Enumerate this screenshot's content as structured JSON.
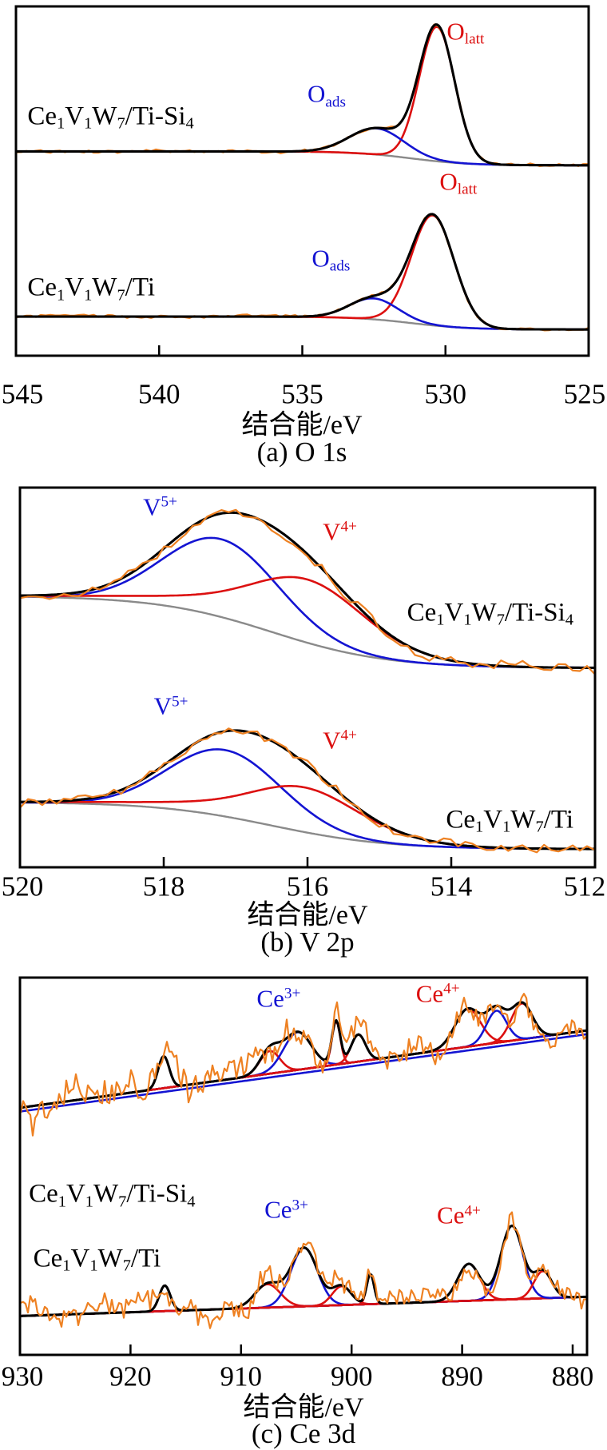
{
  "chart_data": {
    "type": "line",
    "description": "XPS spectra with fitted components: raw data (orange), total fit envelope (black), component peaks (blue/red), background (gray) and baselines",
    "colors": {
      "data": "#EE8122",
      "envelope": "#000000",
      "red": "#DC1010",
      "blue": "#1414D2",
      "gray": "#8a8a8a"
    },
    "panels": [
      {
        "id": "a",
        "caption": "(a) O 1s",
        "xlabel": "结合能/eV",
        "x_range": [
          545,
          525
        ],
        "ticks": [
          545,
          540,
          535,
          530,
          525
        ],
        "spectra": [
          {
            "sample": "Ce1V1W7/Ti-Si4",
            "sample_rich": [
              [
                "t",
                "Ce"
              ],
              [
                "sub",
                "1"
              ],
              [
                "t",
                "V"
              ],
              [
                "sub",
                "1"
              ],
              [
                "t",
                "W"
              ],
              [
                "sub",
                "7"
              ],
              [
                "t",
                "/Ti-Si"
              ],
              [
                "sub",
                "4"
              ]
            ],
            "sample_pos": {
              "x": 544.6,
              "yf": 0.315,
              "anchor": "start"
            },
            "background": {
              "type": "sigmoid",
              "left": 0.415,
              "right": 0.455,
              "center": 531.2,
              "width": 1.0,
              "color": "gray"
            },
            "peaks": [
              {
                "name": "Olatt",
                "center": 530.3,
                "sigma": 0.62,
                "amp": 0.385,
                "color": "red"
              },
              {
                "name": "Oads",
                "center": 532.4,
                "sigma": 0.95,
                "amp": 0.075,
                "color": "blue"
              }
            ],
            "noise": {
              "amp": 0.004,
              "step": 6,
              "seed": 11,
              "coarse_amp": 0.003,
              "coarse_step": 5
            },
            "data_on_top": false,
            "peak_labels": [
              {
                "rich": [
                  [
                    "t",
                    "O"
                  ],
                  [
                    "sub",
                    "latt"
                  ]
                ],
                "x": 529.3,
                "yf": 0.07,
                "color": "red"
              },
              {
                "rich": [
                  [
                    "t",
                    "O"
                  ],
                  [
                    "sub",
                    "ads"
                  ]
                ],
                "x": 534.15,
                "yf": 0.25,
                "color": "blue"
              }
            ]
          },
          {
            "sample": "Ce1V1W7/Ti",
            "sample_rich": [
              [
                "t",
                "Ce"
              ],
              [
                "sub",
                "1"
              ],
              [
                "t",
                "V"
              ],
              [
                "sub",
                "1"
              ],
              [
                "t",
                "W"
              ],
              [
                "sub",
                "7"
              ],
              [
                "t",
                "/Ti"
              ]
            ],
            "sample_pos": {
              "x": 544.6,
              "yf": 0.805,
              "anchor": "start"
            },
            "background": {
              "type": "sigmoid",
              "left": 0.888,
              "right": 0.925,
              "center": 531.2,
              "width": 1.0,
              "color": "gray"
            },
            "peaks": [
              {
                "name": "Olatt",
                "center": 530.45,
                "sigma": 0.75,
                "amp": 0.315,
                "color": "red"
              },
              {
                "name": "Oads",
                "center": 532.5,
                "sigma": 0.85,
                "amp": 0.06,
                "color": "blue"
              }
            ],
            "noise": {
              "amp": 0.004,
              "step": 6,
              "seed": 22,
              "coarse_amp": 0.003,
              "coarse_step": 5
            },
            "data_on_top": false,
            "peak_labels": [
              {
                "rich": [
                  [
                    "t",
                    "O"
                  ],
                  [
                    "sub",
                    "latt"
                  ]
                ],
                "x": 529.55,
                "yf": 0.5,
                "color": "red"
              },
              {
                "rich": [
                  [
                    "t",
                    "O"
                  ],
                  [
                    "sub",
                    "ads"
                  ]
                ],
                "x": 534.0,
                "yf": 0.72,
                "color": "blue"
              }
            ]
          }
        ]
      },
      {
        "id": "b",
        "caption": "(b) V 2p",
        "xlabel": "结合能/eV",
        "x_range": [
          520,
          512
        ],
        "ticks": [
          520,
          518,
          516,
          514,
          512
        ],
        "spectra": [
          {
            "sample": "Ce1V1W7/Ti-Si4",
            "sample_rich": [
              [
                "t",
                "Ce"
              ],
              [
                "sub",
                "1"
              ],
              [
                "t",
                "V"
              ],
              [
                "sub",
                "1"
              ],
              [
                "t",
                "W"
              ],
              [
                "sub",
                "7"
              ],
              [
                "t",
                "/Ti-Si"
              ],
              [
                "sub",
                "4"
              ]
            ],
            "sample_pos": {
              "x": 512.3,
              "yf": 0.33,
              "anchor": "end"
            },
            "background": {
              "type": "sigmoid",
              "left": 0.285,
              "right": 0.475,
              "center": 516.5,
              "width": 0.8,
              "color": "gray"
            },
            "envelope_base": {
              "type": "sigmoid",
              "left": 0.285,
              "right": 0.475,
              "center": 515.1,
              "width": 0.5
            },
            "peaks": [
              {
                "name": "V5+",
                "center": 517.2,
                "sigma": 0.8,
                "amp": 0.205,
                "color": "blue"
              },
              {
                "name": "V4+",
                "center": 516.05,
                "sigma": 0.65,
                "amp": 0.07,
                "color": "red",
                "base": {
                  "type": "sigmoid",
                  "left": 0.285,
                  "right": 0.475,
                  "center": 515.1,
                  "width": 0.5
                }
              }
            ],
            "noise": {
              "amp": 0.012,
              "step": 9,
              "seed": 33,
              "coarse_amp": 0.006,
              "coarse_step": 4
            },
            "data_on_top": true,
            "peak_labels": [
              {
                "rich": [
                  [
                    "t",
                    "V"
                  ],
                  [
                    "sup",
                    "5+"
                  ]
                ],
                "x": 518.05,
                "yf": 0.05,
                "color": "blue"
              },
              {
                "rich": [
                  [
                    "t",
                    "V"
                  ],
                  [
                    "sup",
                    "4+"
                  ]
                ],
                "x": 515.55,
                "yf": 0.115,
                "color": "red"
              }
            ]
          },
          {
            "sample": "Ce1V1W7/Ti",
            "sample_rich": [
              [
                "t",
                "Ce"
              ],
              [
                "sub",
                "1"
              ],
              [
                "t",
                "V"
              ],
              [
                "sub",
                "1"
              ],
              [
                "t",
                "W"
              ],
              [
                "sub",
                "7"
              ],
              [
                "t",
                "/Ti"
              ]
            ],
            "sample_pos": {
              "x": 512.3,
              "yf": 0.875,
              "anchor": "end"
            },
            "background": {
              "type": "sigmoid",
              "left": 0.828,
              "right": 0.952,
              "center": 516.5,
              "width": 0.8,
              "color": "gray"
            },
            "envelope_base": {
              "type": "sigmoid",
              "left": 0.828,
              "right": 0.952,
              "center": 515.1,
              "width": 0.5
            },
            "peaks": [
              {
                "name": "V5+",
                "center": 517.15,
                "sigma": 0.78,
                "amp": 0.175,
                "color": "blue"
              },
              {
                "name": "V4+",
                "center": 516.1,
                "sigma": 0.62,
                "amp": 0.055,
                "color": "red",
                "base": {
                  "type": "sigmoid",
                  "left": 0.828,
                  "right": 0.952,
                  "center": 515.1,
                  "width": 0.5
                }
              }
            ],
            "noise": {
              "amp": 0.011,
              "step": 9,
              "seed": 44,
              "coarse_amp": 0.006,
              "coarse_step": 4
            },
            "data_on_top": true,
            "peak_labels": [
              {
                "rich": [
                  [
                    "t",
                    "V"
                  ],
                  [
                    "sup",
                    "5+"
                  ]
                ],
                "x": 517.9,
                "yf": 0.575,
                "color": "blue"
              },
              {
                "rich": [
                  [
                    "t",
                    "V"
                  ],
                  [
                    "sup",
                    "4+"
                  ]
                ],
                "x": 515.55,
                "yf": 0.665,
                "color": "red"
              }
            ]
          }
        ]
      },
      {
        "id": "c",
        "caption": "(c) Ce 3d",
        "xlabel": "结合能/eV",
        "x_range": [
          930,
          878.7
        ],
        "ticks": [
          930,
          920,
          910,
          900,
          890,
          880
        ],
        "spectra": [
          {
            "sample": "Ce1V1W7/Ti-Si4",
            "sample_rich": [
              [
                "t",
                "Ce"
              ],
              [
                "sub",
                "1"
              ],
              [
                "t",
                "V"
              ],
              [
                "sub",
                "1"
              ],
              [
                "t",
                "W"
              ],
              [
                "sub",
                "7"
              ],
              [
                "t",
                "/Ti-Si"
              ],
              [
                "sub",
                "4"
              ]
            ],
            "sample_pos": {
              "x": 929.2,
              "yf": 0.575,
              "anchor": "start"
            },
            "background": {
              "type": "linear",
              "left": 0.345,
              "right": 0.14,
              "lines": [
                {
                  "color": "blue",
                  "offset": 0.01
                },
                {
                  "color": "red",
                  "offset": 0
                }
              ]
            },
            "peaks": [
              {
                "center": 917.0,
                "sigma": 0.5,
                "amp": 0.085,
                "color": "red"
              },
              {
                "center": 907.4,
                "sigma": 0.9,
                "amp": 0.06,
                "color": "red"
              },
              {
                "center": 904.9,
                "sigma": 1.25,
                "amp": 0.1,
                "color": "blue"
              },
              {
                "center": 901.4,
                "sigma": 0.38,
                "amp": 0.115,
                "color": "red"
              },
              {
                "center": 899.4,
                "sigma": 0.65,
                "amp": 0.072,
                "color": "red"
              },
              {
                "center": 889.5,
                "sigma": 1.15,
                "amp": 0.1,
                "color": "red"
              },
              {
                "center": 886.9,
                "sigma": 0.9,
                "amp": 0.085,
                "color": "blue"
              },
              {
                "center": 884.6,
                "sigma": 0.95,
                "amp": 0.095,
                "color": "red"
              }
            ],
            "noise": {
              "amp": 0.022,
              "step": 3,
              "seed": 55,
              "coarse_amp": 0.03,
              "coarse_step": 5,
              "left_gain": 1.8
            },
            "data_on_top": true,
            "peak_labels": [
              {
                "rich": [
                  [
                    "t",
                    "Ce"
                  ],
                  [
                    "sup",
                    "3+"
                  ]
                ],
                "x": 906.6,
                "yf": 0.055,
                "color": "blue"
              },
              {
                "rich": [
                  [
                    "t",
                    "Ce"
                  ],
                  [
                    "sup",
                    "4+"
                  ]
                ],
                "x": 892.2,
                "yf": 0.042,
                "color": "red"
              }
            ]
          },
          {
            "sample": "Ce1V1W7/Ti",
            "sample_rich": [
              [
                "t",
                "Ce"
              ],
              [
                "sub",
                "1"
              ],
              [
                "t",
                "V"
              ],
              [
                "sub",
                "1"
              ],
              [
                "t",
                "W"
              ],
              [
                "sub",
                "7"
              ],
              [
                "t",
                "/Ti"
              ]
            ],
            "sample_pos": {
              "x": 928.8,
              "yf": 0.745,
              "anchor": "start"
            },
            "background": {
              "type": "linear",
              "left": 0.897,
              "right": 0.846,
              "lines": [
                {
                  "color": "red",
                  "offset": 0
                }
              ]
            },
            "peaks": [
              {
                "center": 916.9,
                "sigma": 0.5,
                "amp": 0.068,
                "color": "red"
              },
              {
                "center": 907.6,
                "sigma": 1.15,
                "amp": 0.062,
                "color": "red"
              },
              {
                "center": 904.3,
                "sigma": 1.2,
                "amp": 0.155,
                "color": "blue"
              },
              {
                "center": 900.9,
                "sigma": 0.85,
                "amp": 0.05,
                "color": "red"
              },
              {
                "center": 898.3,
                "sigma": 0.33,
                "amp": 0.08,
                "color": "red"
              },
              {
                "center": 889.4,
                "sigma": 1.0,
                "amp": 0.098,
                "color": "red"
              },
              {
                "center": 885.5,
                "sigma": 1.0,
                "amp": 0.195,
                "color": "blue"
              },
              {
                "center": 882.7,
                "sigma": 0.8,
                "amp": 0.072,
                "color": "red"
              }
            ],
            "noise": {
              "amp": 0.022,
              "step": 3,
              "seed": 66,
              "coarse_amp": 0.026,
              "coarse_step": 5,
              "left_gain": 1.2
            },
            "data_on_top": true,
            "peak_labels": [
              {
                "rich": [
                  [
                    "t",
                    "Ce"
                  ],
                  [
                    "sup",
                    "3+"
                  ]
                ],
                "x": 905.9,
                "yf": 0.615,
                "color": "blue"
              },
              {
                "rich": [
                  [
                    "t",
                    "Ce"
                  ],
                  [
                    "sup",
                    "4+"
                  ]
                ],
                "x": 890.3,
                "yf": 0.63,
                "color": "red"
              }
            ]
          }
        ]
      }
    ]
  }
}
